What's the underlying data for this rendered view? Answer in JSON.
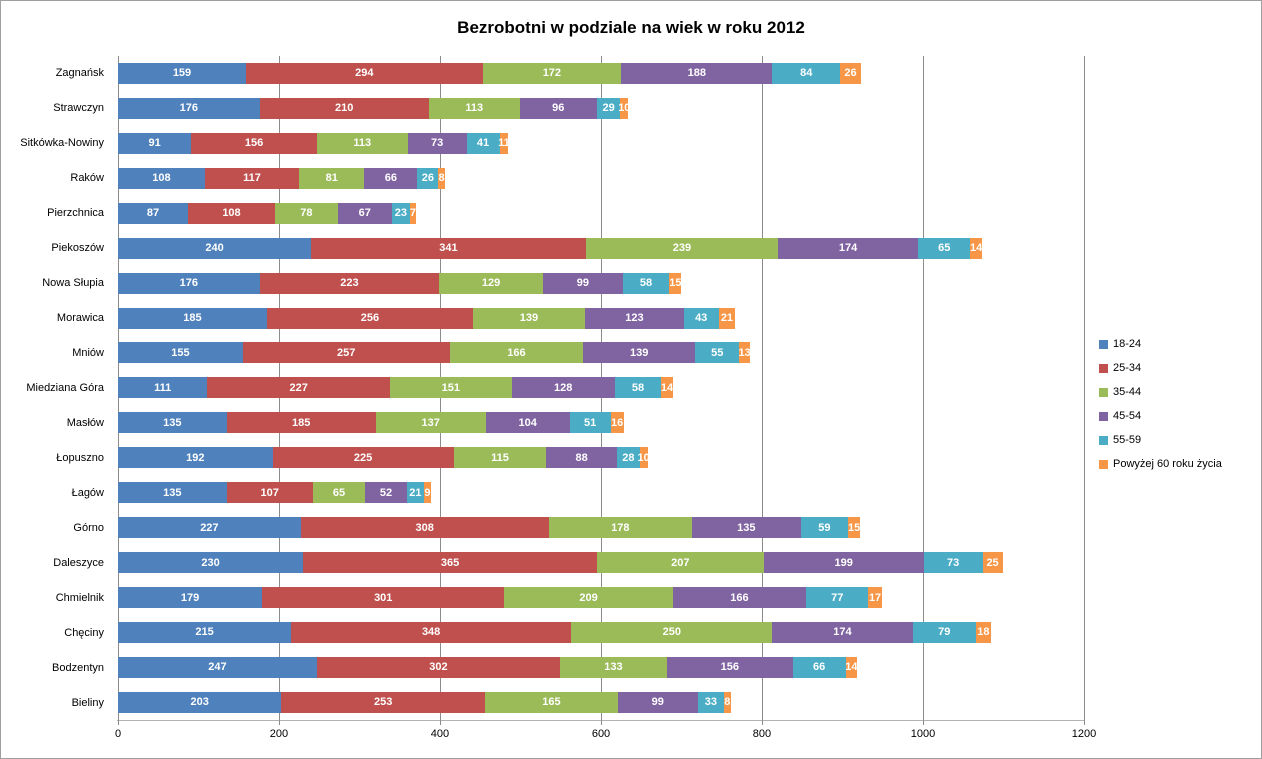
{
  "chart_data": {
    "type": "bar",
    "orientation": "horizontal",
    "stacked": true,
    "title": "Bezrobotni w podziale na wiek w roku 2012",
    "xlim": [
      0,
      1200
    ],
    "x_ticks": [
      0,
      200,
      400,
      600,
      800,
      1000,
      1200
    ],
    "grid": "vertical",
    "legend_position": "right",
    "data_labels": "white bold on segments",
    "categories": [
      "Zagnańsk",
      "Strawczyn",
      "Sitkówka-Nowiny",
      "Raków",
      "Pierzchnica",
      "Piekoszów",
      "Nowa Słupia",
      "Morawica",
      "Mniów",
      "Miedziana Góra",
      "Masłów",
      "Łopuszno",
      "Łagów",
      "Górno",
      "Daleszyce",
      "Chmielnik",
      "Chęciny",
      "Bodzentyn",
      "Bieliny"
    ],
    "series": [
      {
        "name": "18-24",
        "color": "#4F81BD",
        "values": [
          159,
          176,
          91,
          108,
          87,
          240,
          176,
          185,
          155,
          111,
          135,
          192,
          135,
          227,
          230,
          179,
          215,
          247,
          203
        ]
      },
      {
        "name": "25-34",
        "color": "#C0504D",
        "values": [
          294,
          210,
          156,
          117,
          108,
          341,
          223,
          256,
          257,
          227,
          185,
          225,
          107,
          308,
          365,
          301,
          348,
          302,
          253
        ]
      },
      {
        "name": "35-44",
        "color": "#9BBB59",
        "values": [
          172,
          113,
          113,
          81,
          78,
          239,
          129,
          139,
          166,
          151,
          137,
          115,
          65,
          178,
          207,
          209,
          250,
          133,
          165
        ]
      },
      {
        "name": "45-54",
        "color": "#8064A2",
        "values": [
          188,
          96,
          73,
          66,
          67,
          174,
          99,
          123,
          139,
          128,
          104,
          88,
          52,
          135,
          199,
          166,
          174,
          156,
          99
        ]
      },
      {
        "name": "55-59",
        "color": "#4BACC6",
        "values": [
          84,
          29,
          41,
          26,
          23,
          65,
          58,
          43,
          55,
          58,
          51,
          28,
          21,
          59,
          73,
          77,
          79,
          66,
          33
        ]
      },
      {
        "name": "Powyżej 60 roku życia",
        "color": "#F79646",
        "values": [
          26,
          10,
          11,
          8,
          7,
          14,
          15,
          21,
          13,
          14,
          16,
          10,
          9,
          15,
          25,
          17,
          18,
          14,
          8
        ]
      }
    ]
  }
}
